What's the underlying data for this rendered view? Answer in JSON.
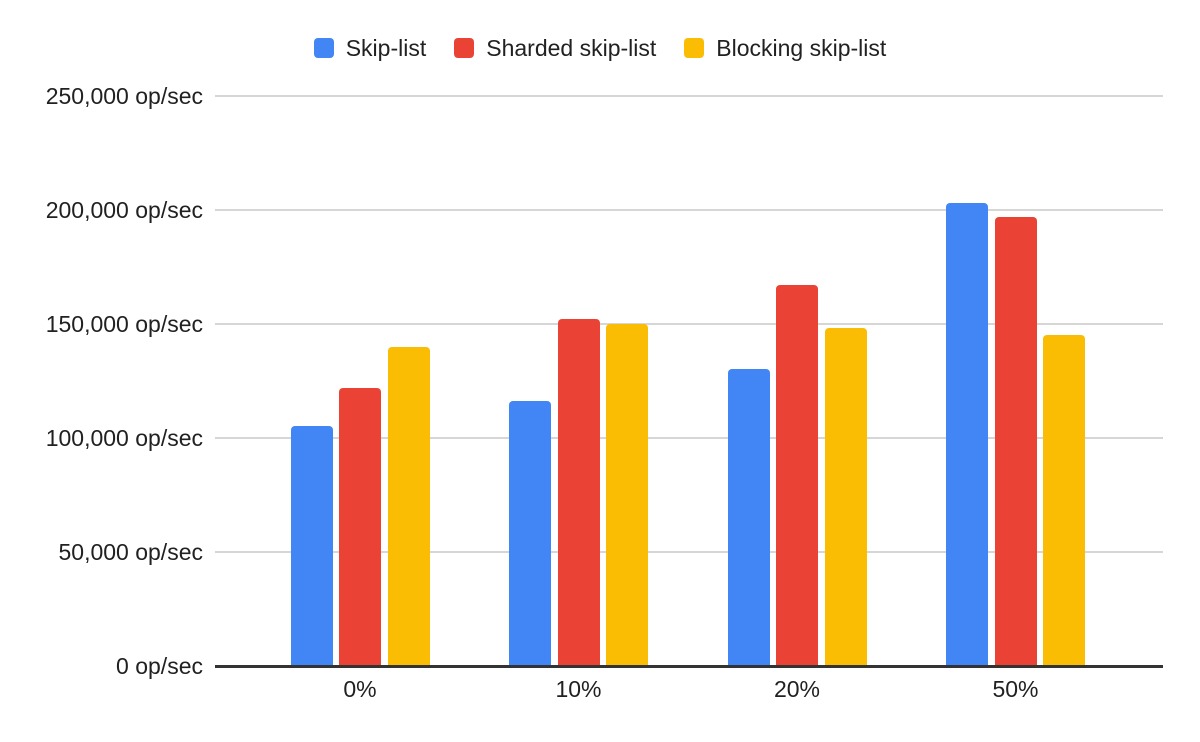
{
  "chart_data": {
    "type": "bar",
    "title": "",
    "xlabel": "",
    "ylabel": "op/sec",
    "grid": true,
    "legend_position": "top",
    "categories": [
      "0%",
      "10%",
      "20%",
      "50%"
    ],
    "series": [
      {
        "name": "Skip-list",
        "color": "#4285F4",
        "values": [
          106000,
          117000,
          131000,
          204000
        ]
      },
      {
        "name": "Sharded skip-list",
        "color": "#EA4335",
        "values": [
          123000,
          153000,
          168000,
          198000
        ]
      },
      {
        "name": "Blocking skip-list",
        "color": "#FBBC04",
        "values": [
          141000,
          151000,
          149000,
          146000
        ]
      }
    ],
    "y_axis": {
      "min": 0,
      "max": 250000,
      "step": 50000,
      "unit": "op/sec",
      "tick_labels": [
        "0 op/sec",
        "50,000 op/sec",
        "100,000 op/sec",
        "150,000 op/sec",
        "200,000 op/sec",
        "250,000 op/sec"
      ]
    }
  },
  "colors": {
    "background": "#ffffff",
    "grid": "#d6d6d6",
    "axis_line": "#333333",
    "text": "#212121"
  }
}
